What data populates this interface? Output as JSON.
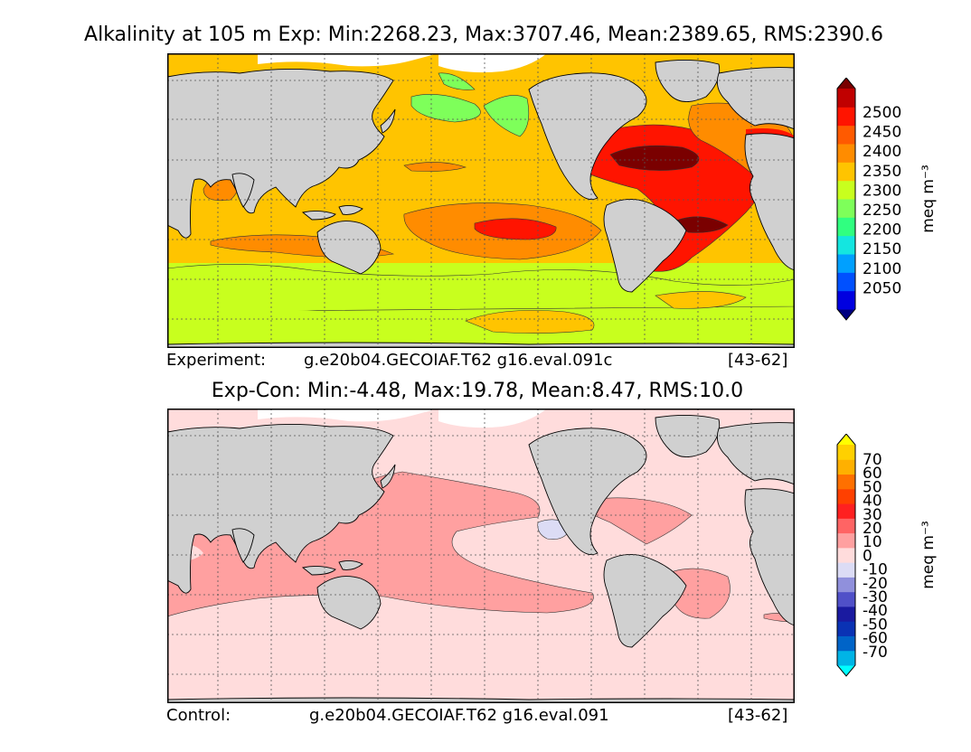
{
  "top_panel": {
    "title": "Alkalinity at 105 m Exp: Min:2268.23, Max:3707.46, Mean:2389.65, RMS:2390.6",
    "footer_label": "Experiment:",
    "footer_case": "g.e20b04.GECOIAF.T62 g16.eval.091c",
    "footer_years": "[43-62]",
    "colorbar": {
      "unit": "meq m⁻³",
      "tick_labels": [
        "2500",
        "2450",
        "2400",
        "2350",
        "2300",
        "2250",
        "2200",
        "2150",
        "2100",
        "2050"
      ],
      "levels": [
        {
          "color": "#000080"
        },
        {
          "color": "#0000e0"
        },
        {
          "color": "#0050ff"
        },
        {
          "color": "#00a0ff"
        },
        {
          "color": "#14e6e0"
        },
        {
          "color": "#30ff80"
        },
        {
          "color": "#7eff5a"
        },
        {
          "color": "#c8ff1e"
        },
        {
          "color": "#ffc400"
        },
        {
          "color": "#ff8c00"
        },
        {
          "color": "#ff5a00"
        },
        {
          "color": "#ff1400"
        },
        {
          "color": "#c00000"
        },
        {
          "color": "#7a0000"
        }
      ]
    }
  },
  "bottom_panel": {
    "title": "Exp-Con: Min:-4.48, Max:19.78, Mean:8.47, RMS:10.0",
    "footer_label": "Control:",
    "footer_case": "g.e20b04.GECOIAF.T62 g16.eval.091",
    "footer_years": "[43-62]",
    "colorbar": {
      "unit": "meq m⁻³",
      "tick_labels": [
        "70",
        "60",
        "50",
        "40",
        "30",
        "20",
        "10",
        "0",
        "-10",
        "-20",
        "-30",
        "-40",
        "-50",
        "-60",
        "-70"
      ],
      "levels": [
        {
          "color": "#00ffff"
        },
        {
          "color": "#00b4e6"
        },
        {
          "color": "#0064c8"
        },
        {
          "color": "#0a32b4"
        },
        {
          "color": "#1a1aa0"
        },
        {
          "color": "#5050c8"
        },
        {
          "color": "#9090dc"
        },
        {
          "color": "#dcdcf5"
        },
        {
          "color": "#ffdcdc"
        },
        {
          "color": "#ffa0a0"
        },
        {
          "color": "#ff6464"
        },
        {
          "color": "#ff2020"
        },
        {
          "color": "#ff4000"
        },
        {
          "color": "#ff7000"
        },
        {
          "color": "#ffb000"
        },
        {
          "color": "#ffd000"
        },
        {
          "color": "#ffff00"
        }
      ]
    }
  },
  "colors": {
    "land": "#d0d0d0",
    "ice": "#ffffff"
  }
}
